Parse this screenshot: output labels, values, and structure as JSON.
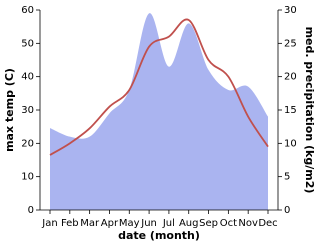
{
  "chart_data": {
    "type": "line-area",
    "x_label": "date (month)",
    "y_label": "max temp (C)",
    "y2_label": "med. precipitation (kg/m2)",
    "categories": [
      "Jan",
      "Feb",
      "Mar",
      "Apr",
      "May",
      "Jun",
      "Jul",
      "Aug",
      "Sep",
      "Oct",
      "Nov",
      "Dec"
    ],
    "series": [
      {
        "name": "max temp",
        "color": "#c0504d",
        "kind": "line",
        "values": [
          16.5,
          20,
          24.5,
          31,
          36,
          49,
          52,
          57,
          45,
          40,
          28,
          19
        ]
      },
      {
        "name": "med. precipitation",
        "color": "#aab4f0",
        "kind": "area",
        "axis": "y2",
        "values": [
          12.3,
          11,
          11,
          14.5,
          18,
          29.5,
          21.5,
          28,
          21,
          18,
          18.5,
          14
        ]
      }
    ],
    "ylim": [
      0,
      60
    ],
    "yticks": [
      0,
      10,
      20,
      30,
      40,
      50,
      60
    ],
    "y2lim": [
      0,
      30
    ],
    "y2ticks": [
      0,
      5,
      10,
      15,
      20,
      25,
      30
    ]
  }
}
